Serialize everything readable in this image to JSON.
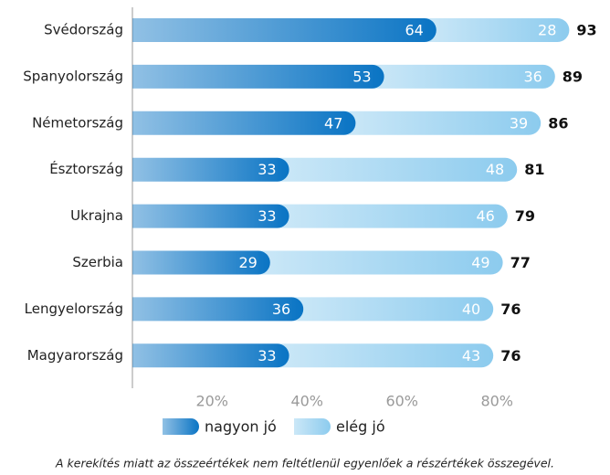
{
  "chart_data": {
    "type": "stacked-bar-horizontal",
    "categories": [
      "Svédország",
      "Spanyolország",
      "Németország",
      "Észtország",
      "Ukrajna",
      "Szerbia",
      "Lengyelország",
      "Magyarország"
    ],
    "series": [
      {
        "name": "nagyon jó",
        "color": "#0a74c4",
        "values": [
          64,
          53,
          47,
          33,
          33,
          29,
          36,
          33
        ]
      },
      {
        "name": "elég jó",
        "color": "#8ccbee",
        "values": [
          28,
          36,
          39,
          48,
          46,
          49,
          40,
          43
        ]
      }
    ],
    "totals": [
      93,
      89,
      86,
      81,
      79,
      77,
      76,
      76
    ],
    "xlim": [
      0,
      100
    ],
    "xticks": [
      {
        "value": 20,
        "label": "20%"
      },
      {
        "value": 40,
        "label": "40%"
      },
      {
        "value": 60,
        "label": "60%"
      },
      {
        "value": 80,
        "label": "80%"
      }
    ],
    "note": "A kerekítés miatt az összeértékek nem feltétlenül egyenlőek a részértékek összegével."
  }
}
